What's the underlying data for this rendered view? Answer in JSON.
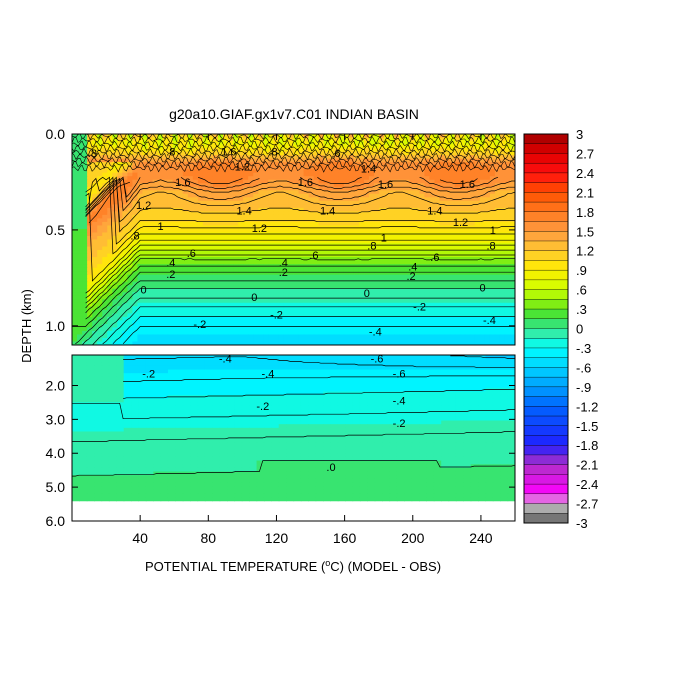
{
  "chart_data": {
    "type": "heatmap",
    "title": "g20a10.GIAF.gx1v7.C01 INDIAN BASIN",
    "xlabel_prefix": "POTENTIAL TEMPERATURE (",
    "xlabel_degree": "o",
    "xlabel_suffix": "C) (MODEL - OBS)",
    "ylabel": "DEPTH (km)",
    "xlim": [
      0,
      260
    ],
    "x_ticks": [
      {
        "value": 40,
        "label": "40"
      },
      {
        "value": 80,
        "label": "80"
      },
      {
        "value": 120,
        "label": "120"
      },
      {
        "value": 160,
        "label": "160"
      },
      {
        "value": 200,
        "label": "200"
      },
      {
        "value": 240,
        "label": "240"
      }
    ],
    "upper_panel": {
      "depth_range": [
        0.0,
        1.1
      ],
      "y_ticks": [
        {
          "value": 0.0,
          "label": "0.0"
        },
        {
          "value": 0.5,
          "label": "0.5"
        },
        {
          "value": 1.0,
          "label": "1.0"
        }
      ],
      "profile": [
        {
          "depth": 0.0,
          "value": 1.0
        },
        {
          "depth": 0.05,
          "value": 0.8
        },
        {
          "depth": 0.1,
          "value": 1.1
        },
        {
          "depth": 0.15,
          "value": 1.6
        },
        {
          "depth": 0.2,
          "value": 1.7
        },
        {
          "depth": 0.25,
          "value": 1.6
        },
        {
          "depth": 0.3,
          "value": 1.4
        },
        {
          "depth": 0.35,
          "value": 1.3
        },
        {
          "depth": 0.45,
          "value": 1.1
        },
        {
          "depth": 0.55,
          "value": 0.8
        },
        {
          "depth": 0.6,
          "value": 0.6
        },
        {
          "depth": 0.65,
          "value": 0.4
        },
        {
          "depth": 0.72,
          "value": 0.2
        },
        {
          "depth": 0.8,
          "value": 0.0
        },
        {
          "depth": 0.9,
          "value": -0.2
        },
        {
          "depth": 1.0,
          "value": -0.4
        },
        {
          "depth": 1.1,
          "value": -0.5
        }
      ],
      "contour_labels": [
        {
          "text": ".8",
          "x": 12,
          "depth": 0.1
        },
        {
          "text": ".8",
          "x": 58,
          "depth": 0.09
        },
        {
          "text": "1.6",
          "x": 92,
          "depth": 0.09
        },
        {
          "text": ".8",
          "x": 118,
          "depth": 0.09
        },
        {
          "text": ".6",
          "x": 155,
          "depth": 0.1
        },
        {
          "text": "1.2",
          "x": 100,
          "depth": 0.17
        },
        {
          "text": "1.4",
          "x": 174,
          "depth": 0.18
        },
        {
          "text": "1.6",
          "x": 65,
          "depth": 0.25
        },
        {
          "text": "1.6",
          "x": 137,
          "depth": 0.25
        },
        {
          "text": "1.6",
          "x": 184,
          "depth": 0.26
        },
        {
          "text": "1.6",
          "x": 232,
          "depth": 0.26
        },
        {
          "text": "1.2",
          "x": 42,
          "depth": 0.37
        },
        {
          "text": "1.4",
          "x": 101,
          "depth": 0.4
        },
        {
          "text": "1.4",
          "x": 150,
          "depth": 0.4
        },
        {
          "text": "1.4",
          "x": 213,
          "depth": 0.4
        },
        {
          "text": "1.2",
          "x": 228,
          "depth": 0.46
        },
        {
          "text": "1",
          "x": 52,
          "depth": 0.48
        },
        {
          "text": "1.2",
          "x": 110,
          "depth": 0.49
        },
        {
          "text": "1",
          "x": 247,
          "depth": 0.5
        },
        {
          "text": ".8",
          "x": 37,
          "depth": 0.53
        },
        {
          "text": "1",
          "x": 183,
          "depth": 0.54
        },
        {
          "text": ".8",
          "x": 176,
          "depth": 0.58
        },
        {
          "text": ".8",
          "x": 246,
          "depth": 0.58
        },
        {
          "text": ".6",
          "x": 70,
          "depth": 0.62
        },
        {
          "text": ".6",
          "x": 142,
          "depth": 0.63
        },
        {
          "text": ".6",
          "x": 213,
          "depth": 0.64
        },
        {
          "text": ".4",
          "x": 58,
          "depth": 0.67
        },
        {
          "text": ".4",
          "x": 124,
          "depth": 0.67
        },
        {
          "text": ".4",
          "x": 200,
          "depth": 0.69
        },
        {
          "text": ".2",
          "x": 58,
          "depth": 0.73
        },
        {
          "text": ".2",
          "x": 124,
          "depth": 0.72
        },
        {
          "text": ".2",
          "x": 199,
          "depth": 0.74
        },
        {
          "text": "0",
          "x": 42,
          "depth": 0.81
        },
        {
          "text": "0",
          "x": 107,
          "depth": 0.85
        },
        {
          "text": "0",
          "x": 173,
          "depth": 0.83
        },
        {
          "text": "0",
          "x": 241,
          "depth": 0.8
        },
        {
          "text": "-.2",
          "x": 120,
          "depth": 0.94
        },
        {
          "text": "-.2",
          "x": 204,
          "depth": 0.9
        },
        {
          "text": "-.2",
          "x": 75,
          "depth": 0.99
        },
        {
          "text": "-.4",
          "x": 178,
          "depth": 1.03
        },
        {
          "text": "-.4",
          "x": 245,
          "depth": 0.97
        }
      ]
    },
    "lower_panel": {
      "depth_range": [
        1.1,
        6.0
      ],
      "data_bottom_depth": 5.4,
      "y_ticks": [
        {
          "value": 2.0,
          "label": "2.0"
        },
        {
          "value": 3.0,
          "label": "3.0"
        },
        {
          "value": 4.0,
          "label": "4.0"
        },
        {
          "value": 5.0,
          "label": "5.0"
        },
        {
          "value": 6.0,
          "label": "6.0"
        }
      ],
      "profile": [
        {
          "depth": 1.1,
          "value": -0.5
        },
        {
          "depth": 1.5,
          "value": -0.45
        },
        {
          "depth": 2.0,
          "value": -0.35
        },
        {
          "depth": 2.5,
          "value": -0.25
        },
        {
          "depth": 3.0,
          "value": -0.18
        },
        {
          "depth": 3.5,
          "value": -0.1
        },
        {
          "depth": 4.0,
          "value": -0.05
        },
        {
          "depth": 4.5,
          "value": 0.0
        },
        {
          "depth": 5.4,
          "value": 0.02
        }
      ],
      "contour_labels": [
        {
          "text": "-.4",
          "x": 90,
          "depth": 1.2
        },
        {
          "text": "-.6",
          "x": 179,
          "depth": 1.2
        },
        {
          "text": "-.2",
          "x": 45,
          "depth": 1.65
        },
        {
          "text": "-.4",
          "x": 115,
          "depth": 1.65
        },
        {
          "text": "-.6",
          "x": 192,
          "depth": 1.65
        },
        {
          "text": "-.4",
          "x": 192,
          "depth": 2.45
        },
        {
          "text": "-.2",
          "x": 112,
          "depth": 2.6
        },
        {
          "text": "-.2",
          "x": 192,
          "depth": 3.1
        },
        {
          "text": ".0",
          "x": 152,
          "depth": 4.4
        }
      ]
    },
    "colorbar": {
      "min": -3,
      "max": 3,
      "tick_labels": [
        "3",
        "2.7",
        "2.4",
        "2.1",
        "1.8",
        "1.5",
        "1.2",
        ".9",
        ".6",
        ".3",
        "0",
        "-.3",
        "-.6",
        "-.9",
        "-1.2",
        "-1.5",
        "-1.8",
        "-2.1",
        "-2.4",
        "-2.7",
        "-3"
      ],
      "tick_values": [
        3,
        2.7,
        2.4,
        2.1,
        1.8,
        1.5,
        1.2,
        0.9,
        0.6,
        0.3,
        0,
        -0.3,
        -0.6,
        -0.9,
        -1.2,
        -1.5,
        -1.8,
        -2.1,
        -2.4,
        -2.7,
        -3
      ]
    }
  }
}
